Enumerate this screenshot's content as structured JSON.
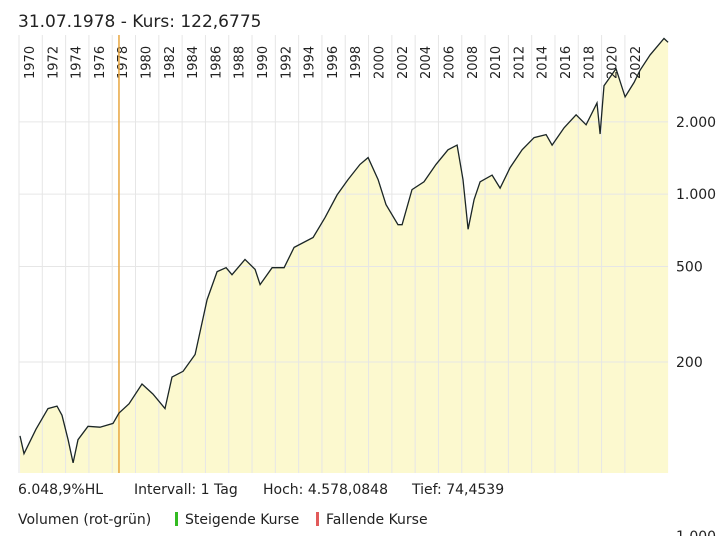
{
  "chart_data": {
    "type": "line",
    "title": "31.07.1978  -  Kurs: 122,6775",
    "log_y": true,
    "grid": true,
    "color": "#1b2626",
    "fill": "#fcf9cf",
    "crosshair_x": 1978.58,
    "crosshair_color": "#e8a640",
    "xlim": [
      1970,
      2025.7
    ],
    "ylim": [
      69,
      4600
    ],
    "xticks": [
      1970,
      1972,
      1974,
      1976,
      1978,
      1980,
      1982,
      1984,
      1986,
      1988,
      1990,
      1992,
      1994,
      1996,
      1998,
      2000,
      2002,
      2004,
      2006,
      2008,
      2010,
      2012,
      2014,
      2016,
      2018,
      2020,
      2022
    ],
    "yticks": [
      200,
      500,
      {
        "value": 1000,
        "label": "1.000"
      },
      {
        "value": 2000,
        "label": "2.000"
      }
    ],
    "x": [
      1970.09,
      1970.43,
      1971.46,
      1972.49,
      1973.26,
      1973.69,
      1974.21,
      1974.64,
      1975.06,
      1975.92,
      1976.95,
      1978.07,
      1978.58,
      1979.44,
      1980.56,
      1981.5,
      1982.53,
      1983.13,
      1984.08,
      1985.11,
      1986.14,
      1987.0,
      1987.77,
      1988.28,
      1989.4,
      1990.26,
      1990.69,
      1991.72,
      1992.75,
      1993.61,
      1995.24,
      1996.27,
      1997.3,
      1998.24,
      1999.27,
      1999.96,
      2000.82,
      2001.5,
      2002.53,
      2002.88,
      2003.73,
      2004.76,
      2005.79,
      2006.82,
      2007.6,
      2008.11,
      2008.54,
      2009.06,
      2009.57,
      2010.6,
      2011.29,
      2012.15,
      2013.18,
      2014.21,
      2015.24,
      2015.75,
      2016.78,
      2017.81,
      2018.67,
      2019.61,
      2019.87,
      2020.21,
      2021.24,
      2022.02,
      2022.79,
      2023.3,
      2024.16,
      2025.36,
      2025.71
    ],
    "values": [
      98.5,
      83,
      105,
      128,
      131,
      120,
      95,
      76,
      95,
      108,
      107,
      111,
      122.6775,
      134,
      162,
      147,
      128,
      173,
      183,
      215,
      364,
      476,
      494,
      462,
      535,
      486,
      420,
      494,
      494,
      600,
      660,
      800,
      993,
      1150,
      1330,
      1420,
      1150,
      905,
      746,
      746,
      1045,
      1126,
      1330,
      1530,
      1600,
      1150,
      714,
      950,
      1126,
      1200,
      1060,
      1290,
      1530,
      1720,
      1770,
      1600,
      1890,
      2140,
      1945,
      2400,
      1780,
      2830,
      3330,
      2540,
      2920,
      3280,
      3800,
      4450,
      4290
    ],
    "stats": [
      "6.048,9%HL",
      "Intervall: 1 Tag",
      "Hoch: 4.578,0848",
      "Tief: 74,4539"
    ],
    "volume": {
      "title": "Volumen (rot-grün)",
      "legend": [
        {
          "name": "Steigende Kurse",
          "color": "#33bb22"
        },
        {
          "name": "Fallende Kurse",
          "color": "#e25a5a"
        }
      ],
      "ytick_labels": [
        "1.000"
      ]
    }
  }
}
